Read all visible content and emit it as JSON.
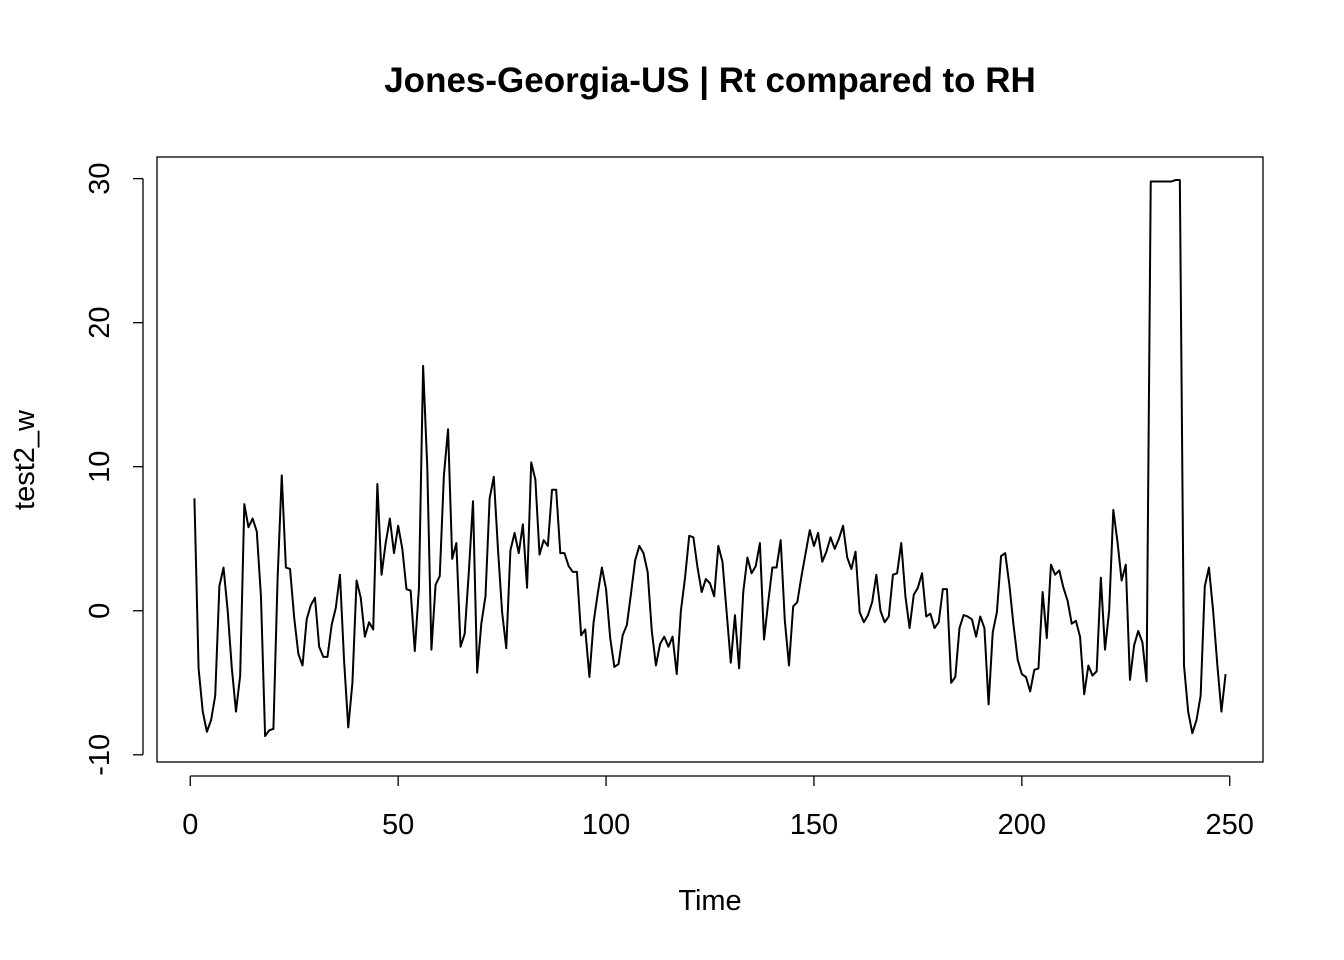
{
  "chart_data": {
    "type": "line",
    "title": "Jones-Georgia-US | Rt compared to RH",
    "xlabel": "Time",
    "ylabel": "test2_w",
    "xlim": [
      -8,
      258
    ],
    "ylim": [
      -10.5,
      31.5
    ],
    "x_ticks": [
      0,
      50,
      100,
      150,
      200,
      250
    ],
    "y_ticks": [
      -10,
      0,
      10,
      20,
      30
    ],
    "x_tick_labels": [
      "0",
      "50",
      "100",
      "150",
      "200",
      "250"
    ],
    "y_tick_labels": [
      "-10",
      "0",
      "10",
      "20",
      "30"
    ],
    "grid": false,
    "x_start": 1,
    "series": [
      {
        "color": "#000000",
        "values": [
          7.8,
          -4.0,
          -7.0,
          -8.4,
          -7.6,
          -5.9,
          1.7,
          3.0,
          0.0,
          -4.0,
          -7.0,
          -4.5,
          7.4,
          5.8,
          6.4,
          5.5,
          1.0,
          -8.7,
          -8.3,
          -8.2,
          2.2,
          9.4,
          3.0,
          2.9,
          -0.5,
          -3.0,
          -3.8,
          -0.6,
          0.4,
          0.9,
          -2.5,
          -3.2,
          -3.2,
          -1.0,
          0.2,
          2.5,
          -3.5,
          -8.1,
          -5.0,
          2.1,
          0.9,
          -1.8,
          -0.8,
          -1.3,
          8.8,
          2.5,
          4.7,
          6.4,
          4.0,
          5.9,
          4.3,
          1.5,
          1.4,
          -2.8,
          1.6,
          17.0,
          10.0,
          -2.7,
          1.8,
          2.4,
          9.4,
          12.6,
          3.6,
          4.7,
          -2.5,
          -1.6,
          2.7,
          7.6,
          -4.3,
          -0.9,
          1.0,
          7.8,
          9.3,
          4.3,
          -0.1,
          -2.6,
          4.2,
          5.4,
          4.0,
          6.0,
          1.6,
          10.3,
          9.1,
          3.9,
          4.9,
          4.5,
          8.4,
          8.4,
          4.0,
          4.0,
          3.1,
          2.7,
          2.7,
          -1.7,
          -1.3,
          -4.6,
          -0.8,
          1.2,
          3.0,
          1.5,
          -1.9,
          -3.9,
          -3.7,
          -1.7,
          -1.0,
          1.2,
          3.5,
          4.5,
          4.0,
          2.7,
          -1.4,
          -3.8,
          -2.3,
          -1.8,
          -2.5,
          -1.8,
          -4.4,
          0.0,
          2.3,
          5.2,
          5.1,
          3.0,
          1.3,
          2.2,
          1.9,
          1.0,
          4.5,
          3.4,
          -0.1,
          -3.6,
          -0.3,
          -4.0,
          1.3,
          3.7,
          2.6,
          3.1,
          4.7,
          -2.0,
          0.6,
          3.0,
          3.0,
          4.9,
          -0.7,
          -3.8,
          0.3,
          0.6,
          2.4,
          4.0,
          5.6,
          4.5,
          5.4,
          3.4,
          4.1,
          5.1,
          4.3,
          5.0,
          5.9,
          3.7,
          2.9,
          4.1,
          -0.1,
          -0.8,
          -0.3,
          0.6,
          2.5,
          0.0,
          -0.8,
          -0.4,
          2.5,
          2.6,
          4.7,
          1.0,
          -1.2,
          1.1,
          1.6,
          2.6,
          -0.4,
          -0.2,
          -1.2,
          -0.8,
          1.5,
          1.5,
          -5.0,
          -4.6,
          -1.2,
          -0.3,
          -0.4,
          -0.6,
          -1.8,
          -0.4,
          -1.2,
          -6.5,
          -1.5,
          -0.1,
          3.8,
          4.0,
          1.8,
          -1.0,
          -3.4,
          -4.4,
          -4.6,
          -5.6,
          -4.1,
          -4.0,
          1.3,
          -1.9,
          3.2,
          2.5,
          2.8,
          1.6,
          0.7,
          -0.9,
          -0.7,
          -1.8,
          -5.8,
          -3.8,
          -4.5,
          -4.2,
          2.3,
          -2.7,
          0.0,
          7.0,
          4.8,
          2.1,
          3.2,
          -4.8,
          -2.4,
          -1.4,
          -2.2,
          -4.9,
          29.8,
          29.8,
          29.8,
          29.8,
          29.8,
          29.8,
          29.9,
          29.9,
          -3.8,
          -7.0,
          -8.5,
          -7.6,
          -5.9,
          1.7,
          3.0,
          0.0,
          -3.7,
          -7.0,
          -4.4
        ]
      }
    ]
  }
}
